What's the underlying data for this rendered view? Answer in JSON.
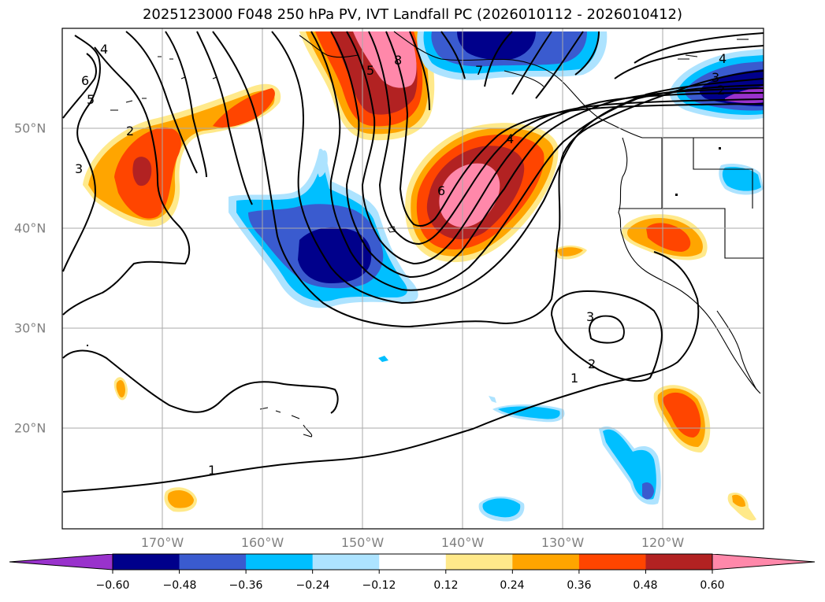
{
  "title": "2025123000 F048 250 hPa PV, IVT Landfall PC (2026010112 - 2026010412)",
  "map": {
    "lon_labels": [
      "170°W",
      "160°W",
      "150°W",
      "140°W",
      "130°W",
      "120°W"
    ],
    "lat_labels": [
      "50°N",
      "40°N",
      "30°N",
      "20°N"
    ],
    "contour_labels": [
      "4",
      "5",
      "6",
      "2",
      "3",
      "5",
      "8",
      "7",
      "4",
      "6",
      "3",
      "2",
      "1",
      "1",
      "3",
      "2",
      "4"
    ]
  },
  "colorbar": {
    "tick_labels": [
      "−0.60",
      "−0.48",
      "−0.36",
      "−0.24",
      "−0.12",
      "0.12",
      "0.24",
      "0.36",
      "0.48",
      "0.60"
    ],
    "colors": [
      "#9932cc",
      "#00008b",
      "#3a5bcf",
      "#00bfff",
      "#ade3ff",
      "#ffffff",
      "#ffe98a",
      "#ffa500",
      "#ff4500",
      "#b22222",
      "#ff88aa"
    ]
  }
}
